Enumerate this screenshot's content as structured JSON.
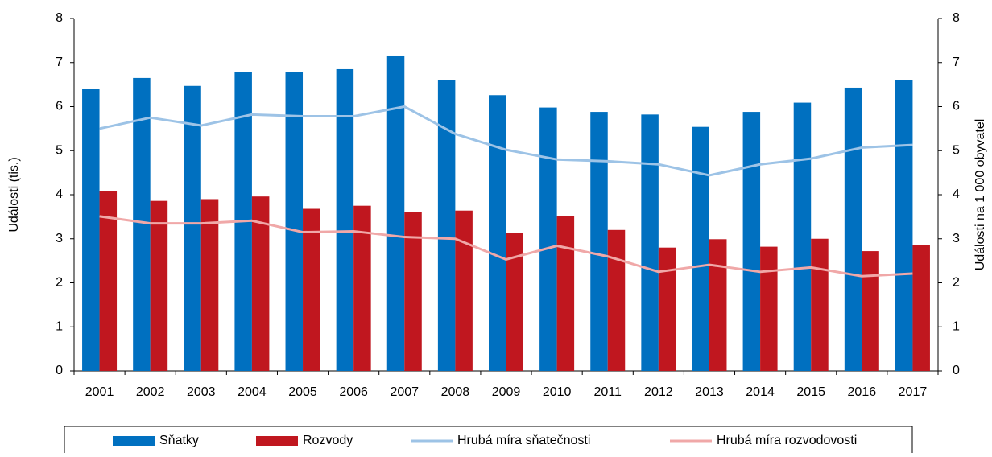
{
  "chart_data": {
    "type": "bar",
    "y_label": "Události (tis.)",
    "y2_label": "Události na 1 000 obyvatel",
    "categories": [
      "2001",
      "2002",
      "2003",
      "2004",
      "2005",
      "2006",
      "2007",
      "2008",
      "2009",
      "2010",
      "2011",
      "2012",
      "2013",
      "2014",
      "2015",
      "2016",
      "2017"
    ],
    "series": [
      {
        "name": "Sňatky",
        "type": "bar",
        "color": "#0070c0",
        "values": [
          6.4,
          6.65,
          6.47,
          6.78,
          6.78,
          6.85,
          7.16,
          6.6,
          6.26,
          5.98,
          5.88,
          5.82,
          5.54,
          5.88,
          6.09,
          6.43,
          6.6
        ]
      },
      {
        "name": "Rozvody",
        "type": "bar",
        "color": "#c0171f",
        "values": [
          4.09,
          3.86,
          3.9,
          3.96,
          3.68,
          3.75,
          3.61,
          3.64,
          3.13,
          3.51,
          3.2,
          2.8,
          2.99,
          2.82,
          3.0,
          2.72,
          2.86
        ]
      },
      {
        "name": "Hrubá míra sňatečnosti",
        "type": "line",
        "axis": "y2",
        "color": "#9dc3e6",
        "values": [
          5.5,
          5.75,
          5.57,
          5.82,
          5.78,
          5.78,
          6.0,
          5.38,
          5.02,
          4.8,
          4.76,
          4.69,
          4.44,
          4.69,
          4.82,
          5.07,
          5.13
        ]
      },
      {
        "name": "Hrubá míra rozvodovosti",
        "type": "line",
        "axis": "y2",
        "color": "#f0a8a8",
        "values": [
          3.51,
          3.35,
          3.35,
          3.41,
          3.15,
          3.17,
          3.04,
          3.0,
          2.53,
          2.84,
          2.6,
          2.25,
          2.41,
          2.25,
          2.35,
          2.15,
          2.21
        ]
      }
    ],
    "ylim": [
      0,
      8
    ],
    "yticks": [
      0,
      1,
      2,
      3,
      4,
      5,
      6,
      7,
      8
    ],
    "y2lim": [
      0,
      8
    ],
    "y2ticks": [
      0,
      1,
      2,
      3,
      4,
      5,
      6,
      7,
      8
    ],
    "legend": "bottom"
  }
}
